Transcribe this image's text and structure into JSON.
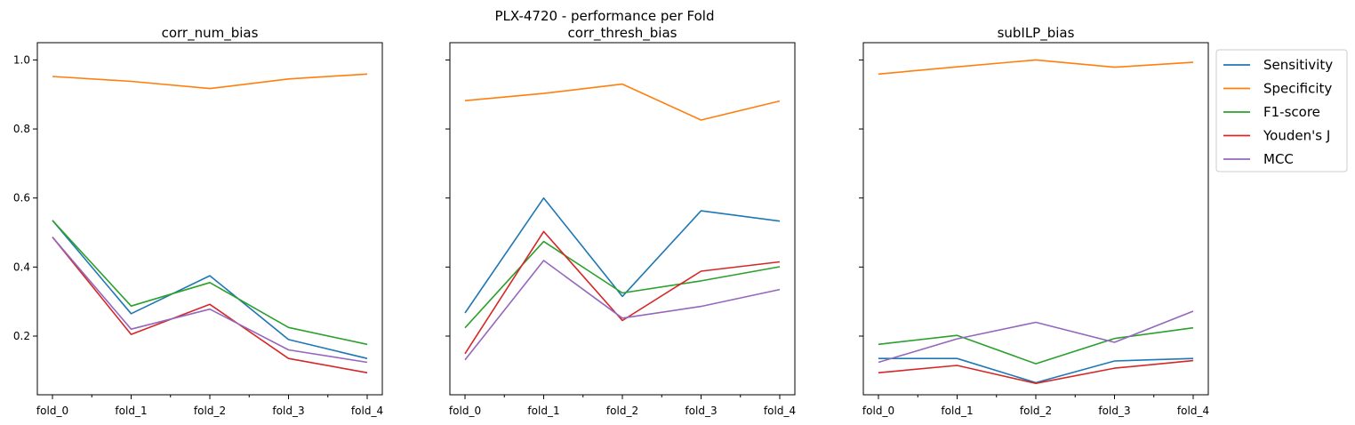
{
  "chart_data": {
    "type": "line",
    "title": "PLX-4720 - performance per Fold",
    "categories": [
      "fold_0",
      "fold_1",
      "fold_2",
      "fold_3",
      "fold_4"
    ],
    "ylim": [
      0.03,
      1.05
    ],
    "yticks": [
      0.2,
      0.4,
      0.6,
      0.8,
      1.0
    ],
    "ytick_labels": [
      "0.2",
      "0.4",
      "0.6",
      "0.8",
      "1.0"
    ],
    "sharey": true,
    "grid": false,
    "legend": {
      "placement": "outside-right-top",
      "entries": [
        "Sensitivity",
        "Specificity",
        "F1-score",
        "Youden's J",
        "MCC"
      ]
    },
    "series_colors": [
      "#1f77b4",
      "#ff7f0e",
      "#2ca02c",
      "#d62728",
      "#9467bd"
    ],
    "panels": [
      {
        "title": "corr_num_bias",
        "series": [
          {
            "name": "Sensitivity",
            "values": [
              0.535,
              0.265,
              0.375,
              0.19,
              0.135
            ]
          },
          {
            "name": "Specificity",
            "values": [
              0.952,
              0.938,
              0.917,
              0.945,
              0.959
            ]
          },
          {
            "name": "F1-score",
            "values": [
              0.535,
              0.287,
              0.355,
              0.225,
              0.176
            ]
          },
          {
            "name": "Youden's J",
            "values": [
              0.487,
              0.205,
              0.292,
              0.135,
              0.094
            ]
          },
          {
            "name": "MCC",
            "values": [
              0.487,
              0.22,
              0.278,
              0.16,
              0.124
            ]
          }
        ]
      },
      {
        "title": "corr_thresh_bias",
        "series": [
          {
            "name": "Sensitivity",
            "values": [
              0.267,
              0.6,
              0.315,
              0.563,
              0.533
            ]
          },
          {
            "name": "Specificity",
            "values": [
              0.882,
              0.903,
              0.93,
              0.826,
              0.881
            ]
          },
          {
            "name": "F1-score",
            "values": [
              0.224,
              0.474,
              0.325,
              0.36,
              0.401
            ]
          },
          {
            "name": "Youden's J",
            "values": [
              0.149,
              0.503,
              0.245,
              0.388,
              0.415
            ]
          },
          {
            "name": "MCC",
            "values": [
              0.131,
              0.419,
              0.252,
              0.286,
              0.335
            ]
          }
        ]
      },
      {
        "title": "subILP_bias",
        "series": [
          {
            "name": "Sensitivity",
            "values": [
              0.135,
              0.135,
              0.065,
              0.128,
              0.135
            ]
          },
          {
            "name": "Specificity",
            "values": [
              0.959,
              0.98,
              1.0,
              0.979,
              0.993
            ]
          },
          {
            "name": "F1-score",
            "values": [
              0.176,
              0.202,
              0.12,
              0.193,
              0.224
            ]
          },
          {
            "name": "Youden's J",
            "values": [
              0.094,
              0.115,
              0.063,
              0.107,
              0.129
            ]
          },
          {
            "name": "MCC",
            "values": [
              0.124,
              0.192,
              0.24,
              0.182,
              0.272
            ]
          }
        ]
      }
    ]
  }
}
